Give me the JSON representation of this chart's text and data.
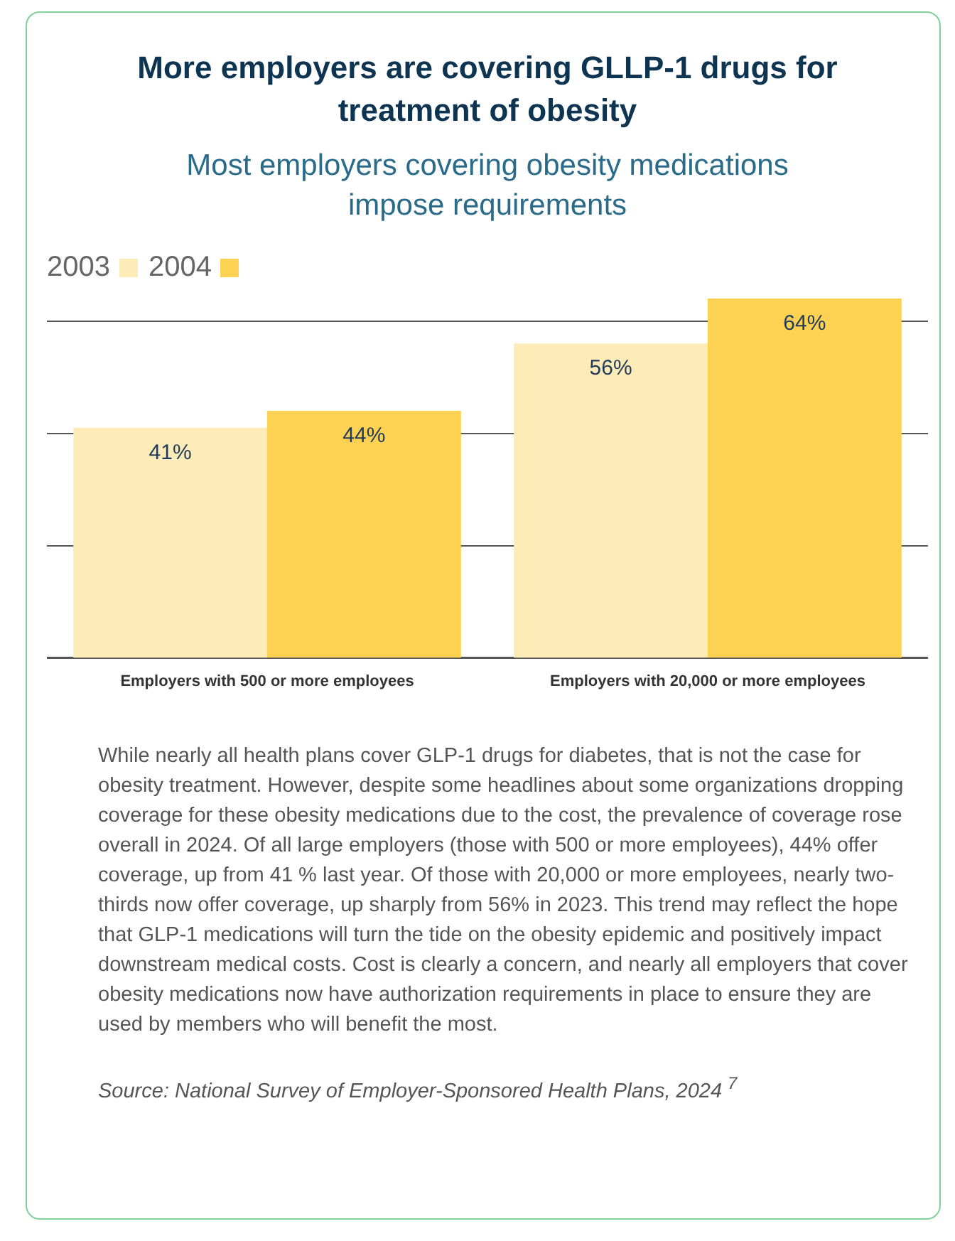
{
  "chart_data": {
    "type": "bar",
    "title": "More employers are covering GLLP-1 drugs for treatment of obesity",
    "subtitle": "Most employers covering obesity medications impose requirements",
    "categories": [
      "Employers with 500 or more employees",
      "Employers with 20,000 or more employees"
    ],
    "series": [
      {
        "name": "2003",
        "color": "#fdebb8",
        "values": [
          41,
          56
        ],
        "value_labels": [
          "41%",
          "56%"
        ]
      },
      {
        "name": "2004",
        "color": "#fdd253",
        "values": [
          44,
          64
        ],
        "value_labels": [
          "44%",
          "64%"
        ]
      }
    ],
    "yticks": [
      {
        "value": 20,
        "label": null
      },
      {
        "value": 40,
        "label": null
      },
      {
        "value": 60,
        "label": null
      }
    ],
    "tick_labels": "x",
    "grid": "y",
    "legend": "top left",
    "annotations": [
      "While nearly all health plans cover GLP-1 drugs for diabetes, that is not the case for obesity treatment. However, despite some headlines about some organizations dropping coverage for these obesity medications due to the cost, the prevalence of coverage rose overall in 2024. Of all large employers (those with 500 or more employees), 44% offer coverage, up from 41 % last year. Of those with 20,000 or more employees, nearly two-thirds now offer coverage, up sharply from 56% in 2023. This trend may reflect the hope that GLP-1 medications will turn the tide on the obesity epidemic and positively impact downstream medical costs. Cost is clearly a concern, and nearly all employers that cover obesity medications now have authorization requirements in place to ensure they are used by members who will benefit the most.",
      "Source: National Survey of Employer-Sponsored Health Plans, 2024 $^{7}$"
    ]
  }
}
